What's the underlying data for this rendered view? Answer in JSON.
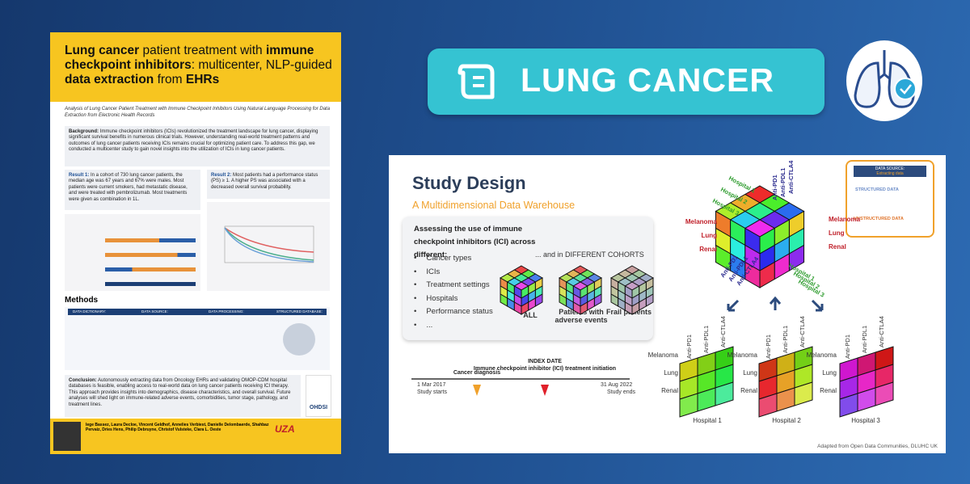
{
  "poster": {
    "title": [
      {
        "text": "Lung cancer",
        "bold": true
      },
      {
        "text": " patient treatment with ",
        "bold": false
      },
      {
        "text": "immune checkpoint inhibitors",
        "bold": true
      },
      {
        "text": ": multicenter, NLP-guided ",
        "bold": false
      },
      {
        "text": "data extraction",
        "bold": true
      },
      {
        "text": " from ",
        "bold": false
      },
      {
        "text": "EHRs",
        "bold": true
      }
    ],
    "subtitle": "Analysis of Lung Cancer Patient Treatment with Immune Checkpoint Inhibitors Using Natural Language Processing for Data Extraction from Electronic Health Records",
    "background": {
      "label": "Background:",
      "text": " Immune checkpoint inhibitors (ICIs) revolutionized the treatment landscape for lung cancer, displaying significant survival benefits in numerous clinical trials. However, understanding real-world treatment patterns and outcomes of lung cancer patients receiving ICIs remains crucial for optimizing patient care. To address this gap, we conducted a multicenter study to gain novel insights into the utilization of ICIs in lung cancer patients."
    },
    "result1": {
      "label": "Result 1:",
      "text": " In a cohort of 730 lung cancer patients, the median age was 67 years and 67% were males. Most patients were current smokers, had metastatic disease, and were treated with pembrolizumab. Most treatments were given as combination in 1L."
    },
    "result2": {
      "label": "Result 2:",
      "text": " Most patients had a performance status (PS) ≥ 1. A higher PS was associated with a decreased overall survival probability."
    },
    "methods": {
      "title": "Methods",
      "steps": [
        "DATA DICTIONARY:",
        "DATA SOURCE:",
        "DATA PROCESSING:",
        "STRUCTURED DATABASE:"
      ]
    },
    "conclusion": {
      "label": "Conclusion:",
      "text": " Autonomously extracting data from Oncology EHRs and validating OMOP-CDM hospital databases is feasible, enabling access to real-world data on lung cancer patients receiving ICI therapy. This approach provides insights into demographics, disease characteristics, and overall survival. Future analyses will shed light on immune-related adverse events, comorbidities, tumor stage, pathology, and treatment lines."
    },
    "authors": "Iege Bassez, Laura Decloe, Vincent Geldhof, Annelies Verbiest, Danielle Delombaerde, Shahbaz Pervaiz, Dries Hens, Philip Debruyne, Christof Vulsteke, Clara L. Oeste",
    "logos": [
      "UZA",
      "OHDSI"
    ]
  },
  "banner": {
    "label": "LUNG CANCER"
  },
  "slide": {
    "title": "Study Design",
    "subtitle": "A Multidimensional Data Warehouse",
    "assess": "Assessing the use of immune checkpoint inhibitors (ICI) across different:",
    "items": [
      "Cancer types",
      "ICIs",
      "Treatment settings",
      "Hospitals",
      "Performance status",
      "..."
    ],
    "cohorts_title": "... and in DIFFERENT COHORTS",
    "cohorts": [
      "ALL",
      "Patients with adverse events",
      "Frail patients"
    ],
    "timeline": {
      "start_date": "1 Mar 2017",
      "start_label": "Study starts",
      "diagnosis": "Cancer diagnosis",
      "index": "INDEX DATE",
      "index_label": "Immune checkpoint inhibitor (ICI) treatment initiation",
      "end_date": "31 Aug 2022",
      "end_label": "Study ends"
    },
    "cancers": [
      "Melanoma",
      "Lung",
      "Renal"
    ],
    "icis": [
      "Anti-PD1",
      "Anti-PDL1",
      "Anti-CTLA4"
    ],
    "hospitals": [
      "Hospital 1",
      "Hospital 2",
      "Hospital 3"
    ],
    "source": {
      "title": "DATA SOURCE:",
      "subtitle": "Extracting data",
      "structured": "STRUCTURED DATA",
      "unstructured": "UNSTRUCTURED DATA"
    },
    "footer": "Adapted from Open Data Communities, DLUHC UK"
  }
}
